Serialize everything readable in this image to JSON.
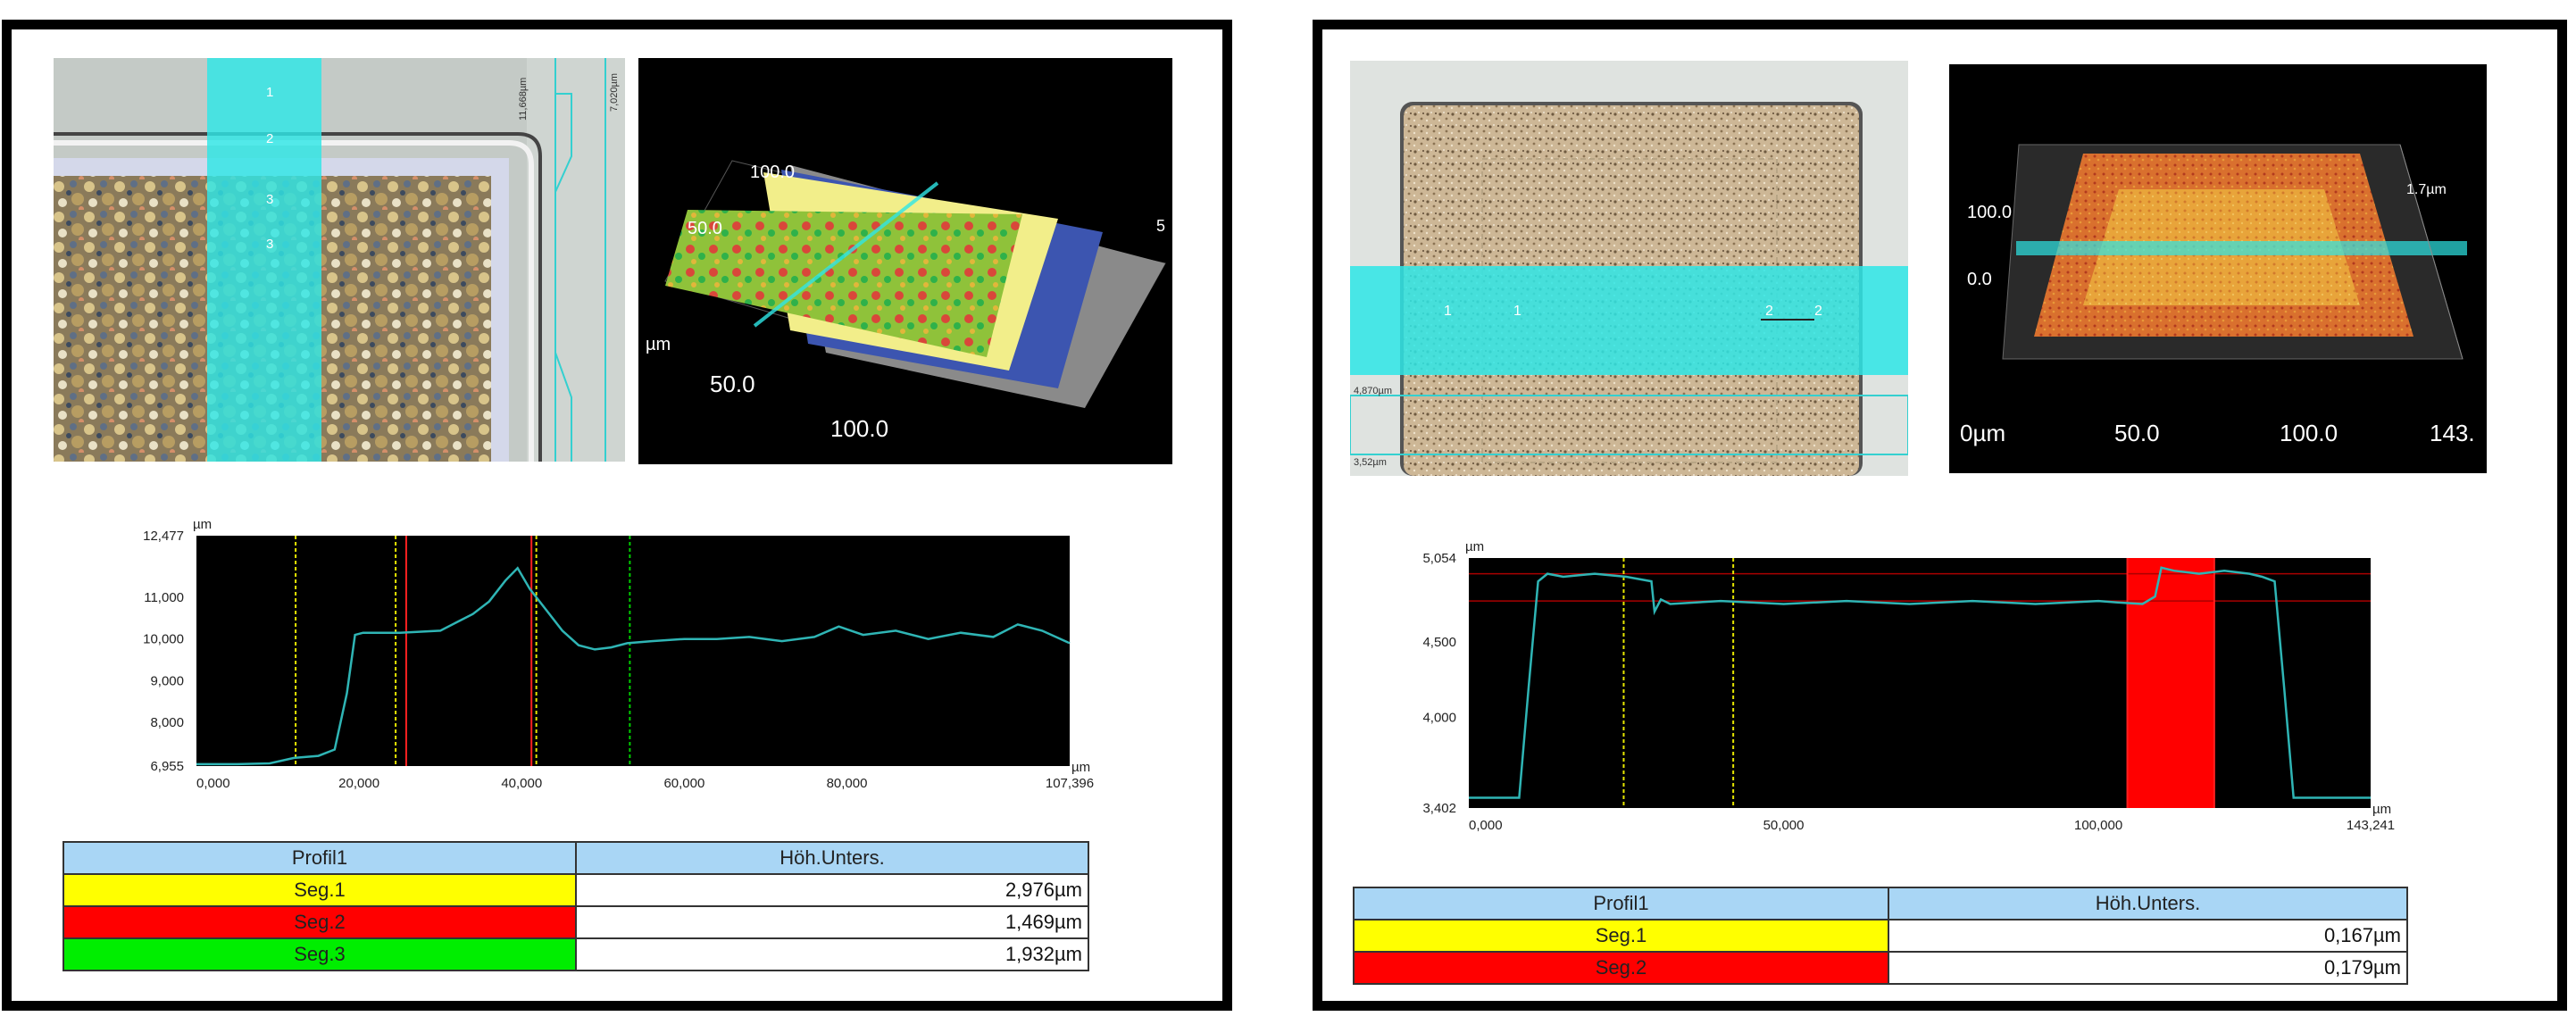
{
  "left": {
    "micro": {
      "markers": [
        "1",
        "2",
        "3",
        "3"
      ],
      "scale_labels": [
        "11,668µm",
        "7,020µm"
      ]
    },
    "view3d": {
      "axis_labels": [
        "100.0",
        "50.0",
        "µm",
        "50.0",
        "100.0",
        "5"
      ]
    },
    "table": {
      "headers": [
        "Profil1",
        "Höh.Unters."
      ],
      "rows": [
        {
          "label": "Seg.1",
          "value": "2,976µm",
          "color": "#ffff00"
        },
        {
          "label": "Seg.2",
          "value": "1,469µm",
          "color": "#ff0000"
        },
        {
          "label": "Seg.3",
          "value": "1,932µm",
          "color": "#00ee00"
        }
      ]
    }
  },
  "right": {
    "micro": {
      "markers": [
        "1",
        "1",
        "2",
        "2"
      ],
      "scale_labels": [
        "4,870µm",
        "3,52µm"
      ]
    },
    "view3d": {
      "axis_labels": [
        "100.0",
        "0.0",
        "1.7µm",
        "0µm",
        "50.0",
        "100.0",
        "143."
      ]
    },
    "table": {
      "headers": [
        "Profil1",
        "Höh.Unters."
      ],
      "rows": [
        {
          "label": "Seg.1",
          "value": "0,167µm",
          "color": "#ffff00"
        },
        {
          "label": "Seg.2",
          "value": "0,179µm",
          "color": "#ff0000"
        }
      ]
    }
  },
  "chart_data": [
    {
      "type": "line",
      "ylabel_unit": "µm",
      "xlabel_unit": "µm",
      "xlim": [
        0,
        107.396
      ],
      "ylim": [
        6.955,
        12.477
      ],
      "x_tick_labels": [
        "0,000",
        "20,000",
        "40,000",
        "60,000",
        "80,000",
        "107,396"
      ],
      "x_ticks": [
        0,
        20,
        40,
        60,
        80,
        107.396
      ],
      "y_tick_labels": [
        "12,477",
        "11,000",
        "10,000",
        "9,000",
        "8,000",
        "6,955"
      ],
      "y_ticks": [
        12.477,
        11.0,
        10.0,
        9.0,
        8.0,
        6.955
      ],
      "line_color": "#2fb5b5",
      "series": [
        {
          "x": [
            0,
            5,
            9,
            12,
            15,
            17,
            18.5,
            19.5,
            20.5,
            25,
            30,
            32,
            34,
            36,
            38,
            39.5,
            41,
            43,
            45,
            47,
            49,
            51,
            53,
            56,
            60,
            64,
            68,
            72,
            76,
            79,
            82,
            86,
            90,
            94,
            98,
            101,
            104,
            107.396
          ],
          "y": [
            7.0,
            7.0,
            7.02,
            7.15,
            7.2,
            7.35,
            8.7,
            10.1,
            10.15,
            10.15,
            10.2,
            10.4,
            10.6,
            10.9,
            11.4,
            11.7,
            11.2,
            10.7,
            10.2,
            9.85,
            9.75,
            9.8,
            9.9,
            9.95,
            10.0,
            10.0,
            10.05,
            9.95,
            10.05,
            10.3,
            10.1,
            10.2,
            10.0,
            10.15,
            10.05,
            10.35,
            10.2,
            9.9
          ]
        }
      ],
      "markers": [
        {
          "x": 12.2,
          "color": "#e6e600"
        },
        {
          "x": 24.5,
          "color": "#e6e600"
        },
        {
          "x": 25.8,
          "color": "#ff2020"
        },
        {
          "x": 41.2,
          "color": "#ff2020"
        },
        {
          "x": 41.8,
          "color": "#e6e600"
        },
        {
          "x": 53.3,
          "color": "#00cc00"
        }
      ]
    },
    {
      "type": "line",
      "ylabel_unit": "µm",
      "xlabel_unit": "µm",
      "xlim": [
        0,
        143.241
      ],
      "ylim": [
        3.402,
        5.054
      ],
      "x_tick_labels": [
        "0,000",
        "50,000",
        "100,000",
        "143,241"
      ],
      "x_ticks": [
        0,
        50,
        100,
        143.241
      ],
      "y_tick_labels": [
        "5,054",
        "4,500",
        "4,000",
        "3,402"
      ],
      "y_ticks": [
        5.054,
        4.5,
        4.0,
        3.402
      ],
      "line_color": "#2fb5b5",
      "series": [
        {
          "x": [
            0,
            8,
            9.5,
            11,
            12.5,
            15,
            20,
            25,
            29,
            29.5,
            30.5,
            32,
            40,
            50,
            60,
            70,
            80,
            90,
            100,
            103,
            107,
            109,
            110,
            112,
            116,
            120,
            124,
            126,
            128,
            129.5,
            131,
            135,
            143.241
          ],
          "y": [
            3.47,
            3.47,
            4.2,
            4.9,
            4.95,
            4.93,
            4.95,
            4.93,
            4.9,
            4.7,
            4.78,
            4.75,
            4.77,
            4.75,
            4.77,
            4.75,
            4.77,
            4.75,
            4.77,
            4.76,
            4.75,
            4.8,
            4.99,
            4.97,
            4.95,
            4.97,
            4.95,
            4.93,
            4.9,
            4.2,
            3.47,
            3.47,
            3.47
          ]
        }
      ],
      "markers": [
        {
          "x": 24.6,
          "color": "#e6e600"
        },
        {
          "x": 42.0,
          "color": "#e6e600"
        },
        {
          "x": 104.6,
          "color": "#ff2020"
        },
        {
          "x": 118.4,
          "color": "#ff2020"
        }
      ],
      "highlight_band": {
        "x_start": 104.6,
        "x_end": 118.4,
        "color": "#ff0000"
      },
      "hlines": [
        {
          "y": 4.95,
          "color": "#aa0000"
        },
        {
          "y": 4.77,
          "color": "#aa0000"
        }
      ]
    }
  ]
}
